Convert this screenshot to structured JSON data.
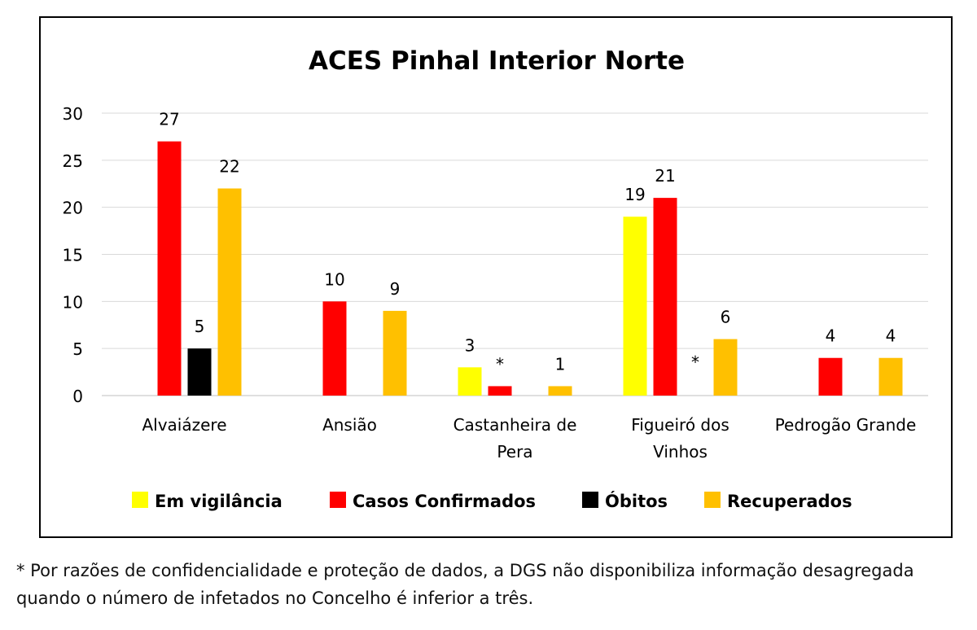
{
  "chart_data": {
    "type": "bar",
    "title": "ACES Pinhal Interior Norte",
    "categories": [
      [
        "Alvaiázere"
      ],
      [
        "Ansião"
      ],
      [
        "Castanheira de",
        "Pera"
      ],
      [
        "Figueiró dos",
        "Vinhos"
      ],
      [
        "Pedrogão Grande"
      ]
    ],
    "ylim": [
      0,
      30
    ],
    "yticks": [
      0,
      5,
      10,
      15,
      20,
      25,
      30
    ],
    "grid": true,
    "legend_position": "bottom",
    "series": [
      {
        "name": "Em vigilância",
        "color": "#FFFF00",
        "values": [
          null,
          null,
          3,
          19,
          null
        ],
        "labels": [
          "",
          "",
          "3",
          "19",
          ""
        ]
      },
      {
        "name": "Casos Confirmados",
        "color": "#FF0000",
        "values": [
          27,
          10,
          1,
          21,
          4
        ],
        "labels": [
          "27",
          "10",
          "*",
          "21",
          "4"
        ]
      },
      {
        "name": "Óbitos",
        "color": "#000000",
        "values": [
          5,
          null,
          null,
          null,
          null
        ],
        "labels": [
          "5",
          "",
          "",
          "*",
          ""
        ]
      },
      {
        "name": "Recuperados",
        "color": "#FFC000",
        "values": [
          22,
          9,
          1,
          6,
          4
        ],
        "labels": [
          "22",
          "9",
          "1",
          "6",
          "4"
        ]
      }
    ]
  },
  "footnote": "* Por razões de confidencialidade e proteção de dados, a DGS não disponibiliza informação desagregada quando o número de infetados no Concelho é inferior a três."
}
